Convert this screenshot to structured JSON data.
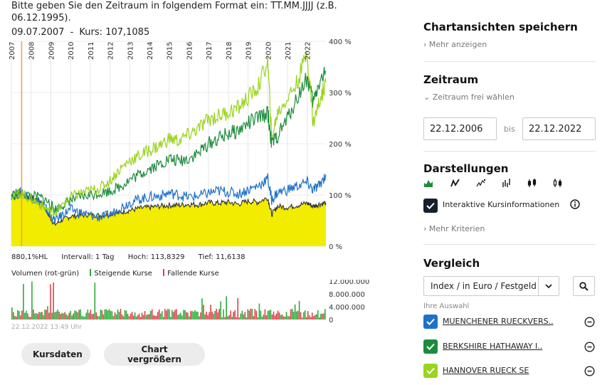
{
  "hint_text": "Bitte geben Sie den Zeitraum in folgendem Format ein: TT.MM.JJJJ (z.B. 06.12.1995).",
  "point_info": {
    "date": "09.07.2007",
    "separator": "-",
    "kurs_label": "Kurs:",
    "kurs_value": "107,1085"
  },
  "chart_stats": {
    "scale": "880,1%HL",
    "intervall": "Intervall: 1 Tag",
    "hoch": "Hoch: 113,8329",
    "tief": "Tief: 11,6138"
  },
  "volume_legend": {
    "title": "Volumen (rot-grün)",
    "up": "Steigende Kurse",
    "down": "Fallende Kurse"
  },
  "timestamp": "22.12.2022 13:49 Uhr",
  "buttons": {
    "kursdaten": "Kursdaten",
    "vergroessern": "Chart vergrößern"
  },
  "sidebar": {
    "save_title": "Chartansichten speichern",
    "mehr_anzeigen": "Mehr anzeigen",
    "zeitraum_title": "Zeitraum",
    "zeitraum_frei": "Zeitraum frei wählen",
    "date_from": "22.12.2006",
    "bis": "bis",
    "date_to": "22.12.2022",
    "darstellungen_title": "Darstellungen",
    "darstellung_icons": [
      "area-chart-icon",
      "line-chart-icon",
      "mountain-line-icon",
      "ohlc-bar-icon",
      "candlestick-icon",
      "hollow-candle-icon"
    ],
    "kursinfo_label": "Interaktive Kursinformationen",
    "mehr_kriterien": "Mehr Kriterien",
    "vergleich_title": "Vergleich",
    "index_select": "Index / in Euro / Festgeld",
    "ihre_auswahl": "Ihre Auswahl",
    "comparisons": [
      {
        "name": "MUENCHENER RUECKVERS..",
        "color": "#1f72c8"
      },
      {
        "name": "BERKSHIRE HATHAWAY I..",
        "color": "#1c8c3c"
      },
      {
        "name": "HANNOVER RUECK SE",
        "color": "#9ad41e"
      }
    ]
  },
  "chart_data": {
    "type": "line",
    "x_unit": "year",
    "xlim": [
      2007.0,
      2022.95
    ],
    "ylim": [
      0,
      400
    ],
    "y_unit": "%",
    "yticks": [
      "400 %",
      "300 %",
      "200 %",
      "100 %",
      "0 %"
    ],
    "ytick_values": [
      400,
      300,
      200,
      100,
      0
    ],
    "xticks": [
      "2007",
      "2008",
      "2009",
      "2010",
      "2011",
      "2012",
      "2013",
      "2014",
      "2015",
      "2016",
      "2017",
      "2018",
      "2019",
      "2020",
      "2021",
      "2022"
    ],
    "xtick_values": [
      2007,
      2008,
      2009,
      2010,
      2011,
      2012,
      2013,
      2014,
      2015,
      2016,
      2017,
      2018,
      2019,
      2020,
      2021,
      2022
    ],
    "highlight": {
      "x": 2007.52,
      "label": "09.07.2007",
      "color": "#f0a040"
    },
    "series": [
      {
        "role": "main-area",
        "color": "#f2ec00",
        "x": [
          2007.0,
          2007.5,
          2008.0,
          2008.5,
          2008.9,
          2009.2,
          2009.6,
          2010.0,
          2010.5,
          2011.0,
          2011.5,
          2012.0,
          2012.5,
          2013.0,
          2013.5,
          2014.0,
          2014.5,
          2015.0,
          2015.5,
          2016.0,
          2016.5,
          2017.0,
          2017.5,
          2018.0,
          2018.5,
          2019.0,
          2019.5,
          2020.0,
          2020.2,
          2020.5,
          2021.0,
          2021.5,
          2022.0,
          2022.3,
          2022.6,
          2022.95
        ],
        "y": [
          100,
          105,
          95,
          88,
          60,
          42,
          52,
          58,
          60,
          62,
          60,
          63,
          66,
          70,
          74,
          76,
          78,
          80,
          80,
          82,
          81,
          85,
          84,
          86,
          82,
          88,
          86,
          95,
          62,
          78,
          76,
          80,
          84,
          78,
          82,
          85
        ]
      },
      {
        "name": "MUENCHENER RUECKVERS..",
        "color": "#1f72c8",
        "x": [
          2007.0,
          2007.5,
          2008.0,
          2008.5,
          2008.9,
          2009.2,
          2009.6,
          2010.0,
          2010.5,
          2011.0,
          2011.5,
          2012.0,
          2012.5,
          2013.0,
          2013.5,
          2014.0,
          2014.5,
          2015.0,
          2015.5,
          2016.0,
          2016.5,
          2017.0,
          2017.5,
          2018.0,
          2018.5,
          2019.0,
          2019.5,
          2020.0,
          2020.2,
          2020.5,
          2021.0,
          2021.5,
          2022.0,
          2022.3,
          2022.6,
          2022.95
        ],
        "y": [
          100,
          104,
          95,
          85,
          65,
          50,
          62,
          72,
          66,
          60,
          56,
          62,
          74,
          86,
          92,
          96,
          98,
          104,
          100,
          96,
          98,
          104,
          108,
          106,
          102,
          110,
          118,
          132,
          90,
          105,
          110,
          118,
          124,
          110,
          118,
          140
        ]
      },
      {
        "name": "BERKSHIRE HATHAWAY I..",
        "color": "#1c8c3c",
        "x": [
          2007.0,
          2007.5,
          2008.0,
          2008.5,
          2008.9,
          2009.2,
          2009.6,
          2010.0,
          2010.5,
          2011.0,
          2011.5,
          2012.0,
          2012.5,
          2013.0,
          2013.5,
          2014.0,
          2014.5,
          2015.0,
          2015.5,
          2016.0,
          2016.5,
          2017.0,
          2017.5,
          2018.0,
          2018.5,
          2019.0,
          2019.5,
          2020.0,
          2020.2,
          2020.5,
          2021.0,
          2021.5,
          2022.0,
          2022.3,
          2022.6,
          2022.95
        ],
        "y": [
          100,
          102,
          98,
          95,
          85,
          72,
          80,
          90,
          96,
          100,
          104,
          108,
          116,
          130,
          140,
          152,
          160,
          170,
          166,
          172,
          182,
          200,
          210,
          220,
          225,
          240,
          250,
          260,
          200,
          215,
          250,
          290,
          330,
          280,
          320,
          340
        ]
      },
      {
        "name": "HANNOVER RUECK SE",
        "color": "#9ad41e",
        "x": [
          2007.0,
          2007.5,
          2008.0,
          2008.5,
          2008.9,
          2009.2,
          2009.6,
          2010.0,
          2010.5,
          2011.0,
          2011.5,
          2012.0,
          2012.5,
          2013.0,
          2013.5,
          2014.0,
          2014.5,
          2015.0,
          2015.5,
          2016.0,
          2016.5,
          2017.0,
          2017.5,
          2018.0,
          2018.5,
          2019.0,
          2019.5,
          2020.0,
          2020.2,
          2020.5,
          2021.0,
          2021.5,
          2022.0,
          2022.3,
          2022.6,
          2022.95
        ],
        "y": [
          100,
          103,
          92,
          80,
          70,
          66,
          80,
          96,
          104,
          108,
          114,
          128,
          150,
          168,
          176,
          188,
          196,
          210,
          206,
          218,
          230,
          248,
          254,
          262,
          270,
          290,
          310,
          360,
          210,
          260,
          290,
          320,
          380,
          240,
          280,
          320
        ]
      }
    ]
  },
  "volume_data": {
    "type": "bar",
    "ylim": [
      0,
      12000000
    ],
    "yticks": [
      "12.000.000",
      "8.000.000",
      "4.000.000",
      "0"
    ],
    "ytick_values": [
      12000000,
      8000000,
      4000000,
      0
    ],
    "up_color": "#2eaa3a",
    "down_color": "#e0404a"
  }
}
